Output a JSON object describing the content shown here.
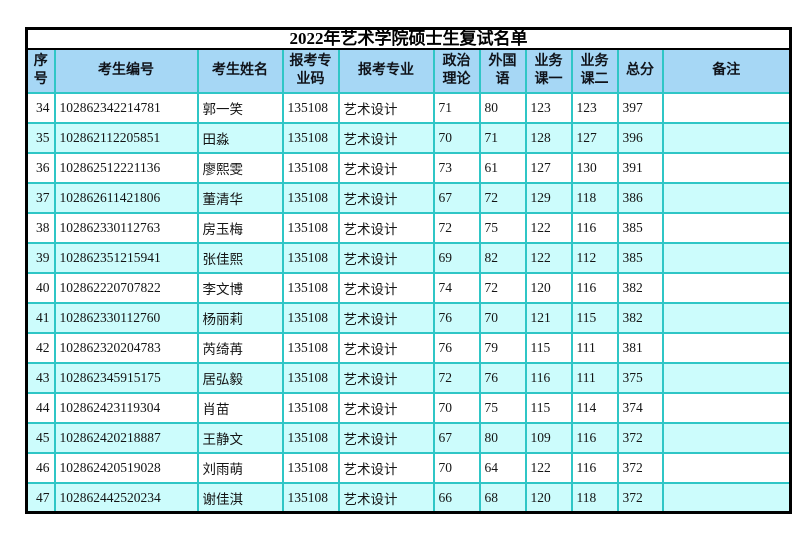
{
  "title": "2022年艺术学院硕士生复试名单",
  "colors": {
    "header_bg": "#a6d7f5",
    "alt_row_bg": "#ccfcfc",
    "grid": "#2fc6c6",
    "outer_border": "#000000"
  },
  "table": {
    "columns": [
      {
        "key": "seq",
        "label": "序\n号"
      },
      {
        "key": "candidate_id",
        "label": "考生编号"
      },
      {
        "key": "name",
        "label": "考生姓名"
      },
      {
        "key": "major_code",
        "label": "报考专\n业码"
      },
      {
        "key": "major",
        "label": "报考专业"
      },
      {
        "key": "politics",
        "label": "政治\n理论"
      },
      {
        "key": "foreign_lang",
        "label": "外国\n语"
      },
      {
        "key": "course1",
        "label": "业务\n课一"
      },
      {
        "key": "course2",
        "label": "业务\n课二"
      },
      {
        "key": "total",
        "label": "总分"
      },
      {
        "key": "remark",
        "label": "备注"
      }
    ],
    "rows": [
      [
        "34",
        "102862342214781",
        "郭一笑",
        "135108",
        "艺术设计",
        "71",
        "80",
        "123",
        "123",
        "397",
        ""
      ],
      [
        "35",
        "102862112205851",
        "田淼",
        "135108",
        "艺术设计",
        "70",
        "71",
        "128",
        "127",
        "396",
        ""
      ],
      [
        "36",
        "102862512221136",
        "廖熙雯",
        "135108",
        "艺术设计",
        "73",
        "61",
        "127",
        "130",
        "391",
        ""
      ],
      [
        "37",
        "102862611421806",
        "董清华",
        "135108",
        "艺术设计",
        "67",
        "72",
        "129",
        "118",
        "386",
        ""
      ],
      [
        "38",
        "102862330112763",
        "房玉梅",
        "135108",
        "艺术设计",
        "72",
        "75",
        "122",
        "116",
        "385",
        ""
      ],
      [
        "39",
        "102862351215941",
        "张佳熙",
        "135108",
        "艺术设计",
        "69",
        "82",
        "122",
        "112",
        "385",
        ""
      ],
      [
        "40",
        "102862220707822",
        "李文博",
        "135108",
        "艺术设计",
        "74",
        "72",
        "120",
        "116",
        "382",
        ""
      ],
      [
        "41",
        "102862330112760",
        "杨丽莉",
        "135108",
        "艺术设计",
        "76",
        "70",
        "121",
        "115",
        "382",
        ""
      ],
      [
        "42",
        "102862320204783",
        "芮绮苒",
        "135108",
        "艺术设计",
        "76",
        "79",
        "115",
        "111",
        "381",
        ""
      ],
      [
        "43",
        "102862345915175",
        "居弘毅",
        "135108",
        "艺术设计",
        "72",
        "76",
        "116",
        "111",
        "375",
        ""
      ],
      [
        "44",
        "102862423119304",
        "肖苗",
        "135108",
        "艺术设计",
        "70",
        "75",
        "115",
        "114",
        "374",
        ""
      ],
      [
        "45",
        "102862420218887",
        "王静文",
        "135108",
        "艺术设计",
        "67",
        "80",
        "109",
        "116",
        "372",
        ""
      ],
      [
        "46",
        "102862420519028",
        "刘雨萌",
        "135108",
        "艺术设计",
        "70",
        "64",
        "122",
        "116",
        "372",
        ""
      ],
      [
        "47",
        "102862442520234",
        "谢佳淇",
        "135108",
        "艺术设计",
        "66",
        "68",
        "120",
        "118",
        "372",
        ""
      ]
    ]
  }
}
